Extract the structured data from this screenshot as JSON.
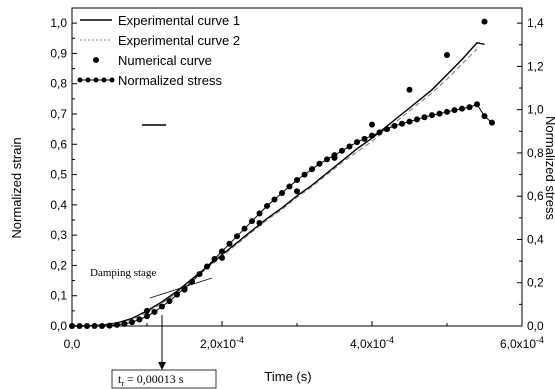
{
  "chart_data": {
    "type": "line",
    "title": "",
    "xlabel": "Time (s)",
    "ylabel": "Normalized strain",
    "y2label": "Normalized stress",
    "xlim": [
      0,
      0.0006
    ],
    "ylim": [
      0,
      1.05
    ],
    "y2lim": [
      0,
      1.47
    ],
    "xticks": [
      0,
      0.0002,
      0.0004,
      0.0006
    ],
    "xtick_labels": [
      "0,0",
      "2,0x10",
      "4,0x10",
      "6,0x10"
    ],
    "xtick_exponents": [
      "",
      "-4",
      "-4",
      "-4"
    ],
    "yticks": [
      0,
      0.1,
      0.2,
      0.3,
      0.4,
      0.5,
      0.6,
      0.7,
      0.8,
      0.9,
      1.0
    ],
    "ytick_labels": [
      "0,0",
      "0,1",
      "0,2",
      "0,3",
      "0,4",
      "0,5",
      "0,6",
      "0,7",
      "0,8",
      "0,9",
      "1,0"
    ],
    "y2ticks": [
      0,
      0.2,
      0.4,
      0.6,
      0.8,
      1.0,
      1.2,
      1.4
    ],
    "y2tick_labels": [
      "0,0",
      "0,2",
      "0,4",
      "0,6",
      "0,8",
      "1,0",
      "1,2",
      "1,4"
    ],
    "grid": false,
    "legend_position": "top-left",
    "series": [
      {
        "name": "Experimental curve 1",
        "style": "solid",
        "axis": "left",
        "x": [
          0,
          2e-05,
          4e-05,
          6e-05,
          8e-05,
          0.0001,
          0.00012,
          0.00014,
          0.00016,
          0.00018,
          0.0002,
          0.00022,
          0.00024,
          0.00026,
          0.00028,
          0.0003,
          0.00032,
          0.00034,
          0.00036,
          0.00038,
          0.0004,
          0.00042,
          0.00044,
          0.00046,
          0.00048,
          0.0005,
          0.00052,
          0.00054,
          0.00055
        ],
        "y": [
          0,
          0,
          0.003,
          0.01,
          0.025,
          0.05,
          0.08,
          0.115,
          0.155,
          0.195,
          0.235,
          0.275,
          0.315,
          0.355,
          0.39,
          0.43,
          0.465,
          0.505,
          0.545,
          0.585,
          0.62,
          0.66,
          0.7,
          0.74,
          0.78,
          0.83,
          0.88,
          0.935,
          0.93
        ]
      },
      {
        "name": "Experimental curve 2",
        "style": "dotted",
        "axis": "left",
        "x": [
          0,
          2e-05,
          4e-05,
          6e-05,
          8e-05,
          0.0001,
          0.00012,
          0.00014,
          0.00016,
          0.00018,
          0.0002,
          0.00022,
          0.00024,
          0.00026,
          0.00028,
          0.0003,
          0.00032,
          0.00034,
          0.00036,
          0.00038,
          0.0004,
          0.00042,
          0.00044,
          0.00046,
          0.00048,
          0.0005,
          0.00052,
          0.00054
        ],
        "y": [
          0,
          0,
          0.002,
          0.008,
          0.02,
          0.045,
          0.075,
          0.11,
          0.15,
          0.19,
          0.23,
          0.27,
          0.31,
          0.35,
          0.385,
          0.425,
          0.46,
          0.5,
          0.54,
          0.575,
          0.61,
          0.65,
          0.69,
          0.73,
          0.77,
          0.815,
          0.865,
          0.915
        ]
      },
      {
        "name": "Numerical curve",
        "style": "points",
        "axis": "left",
        "x": [
          0.0001,
          0.00015,
          0.0002,
          0.00025,
          0.0003,
          0.00035,
          0.0004,
          0.00045,
          0.0005,
          0.00055
        ],
        "y": [
          0.05,
          0.12,
          0.225,
          0.34,
          0.445,
          0.555,
          0.665,
          0.78,
          0.895,
          1.005
        ]
      },
      {
        "name": "Normalized stress",
        "style": "line-points",
        "axis": "right",
        "x": [
          0,
          1e-05,
          2e-05,
          3e-05,
          4e-05,
          5e-05,
          6e-05,
          7e-05,
          8e-05,
          9e-05,
          0.0001,
          0.00011,
          0.00012,
          0.00013,
          0.00014,
          0.00015,
          0.00016,
          0.00017,
          0.00018,
          0.00019,
          0.0002,
          0.00021,
          0.00022,
          0.00023,
          0.00024,
          0.00025,
          0.00026,
          0.00027,
          0.00028,
          0.00029,
          0.0003,
          0.00031,
          0.00032,
          0.00033,
          0.00034,
          0.00035,
          0.00036,
          0.00037,
          0.00038,
          0.00039,
          0.0004,
          0.00041,
          0.00042,
          0.00043,
          0.00044,
          0.00045,
          0.00046,
          0.00047,
          0.00048,
          0.00049,
          0.0005,
          0.00051,
          0.00052,
          0.00053,
          0.00054,
          0.00055,
          0.00056
        ],
        "y": [
          0,
          0,
          0,
          0,
          0,
          0.002,
          0.005,
          0.01,
          0.018,
          0.03,
          0.045,
          0.065,
          0.09,
          0.115,
          0.145,
          0.175,
          0.205,
          0.24,
          0.275,
          0.31,
          0.345,
          0.38,
          0.415,
          0.45,
          0.485,
          0.52,
          0.555,
          0.585,
          0.615,
          0.645,
          0.675,
          0.7,
          0.725,
          0.75,
          0.77,
          0.79,
          0.81,
          0.83,
          0.85,
          0.865,
          0.88,
          0.895,
          0.91,
          0.925,
          0.935,
          0.945,
          0.955,
          0.965,
          0.975,
          0.982,
          0.99,
          0.998,
          1.005,
          1.012,
          1.025,
          0.97,
          0.94
        ]
      }
    ],
    "annotations": [
      {
        "text": "Damping stage",
        "font": "serif"
      },
      {
        "text": "t",
        "subscript": "r",
        "suffix": " = 0,00013 s",
        "x": 0.00013
      }
    ]
  }
}
